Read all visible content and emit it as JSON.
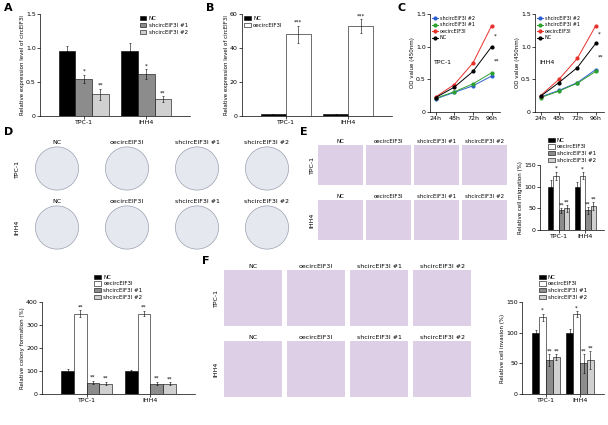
{
  "chart_data": [
    {
      "panel": "A",
      "type": "bar",
      "y_label": "Relative expression level of circEIF3I",
      "categories": [
        "TPC-1",
        "IHH4"
      ],
      "ylim": [
        0,
        1.5
      ],
      "yticks": [
        0,
        0.5,
        {
          "value": 1.0,
          "label": "1.0"
        },
        1.5
      ],
      "legend": "upper right",
      "series": [
        {
          "name": "NC",
          "color": "#000000",
          "values": [
            0.95,
            0.95
          ],
          "errors": [
            0.08,
            0.12
          ],
          "significance": [
            null,
            null
          ]
        },
        {
          "name": "shcircEIF3I #1",
          "color": "#8c8c8c",
          "values": [
            0.55,
            0.62
          ],
          "errors": [
            0.06,
            0.07
          ],
          "significance": [
            "*",
            "*"
          ]
        },
        {
          "name": "shcircEIF3I #2",
          "color": "#d0d0d0",
          "values": [
            0.32,
            0.25
          ],
          "errors": [
            0.08,
            0.04
          ],
          "significance": [
            "**",
            "**"
          ]
        }
      ]
    },
    {
      "panel": "B",
      "type": "bar",
      "y_label": "Relative expression level of circEIF3I",
      "categories": [
        "TPC-1",
        "IHH4"
      ],
      "ylim": [
        0,
        60
      ],
      "yticks": [
        0,
        20,
        40,
        60
      ],
      "legend": "upper left",
      "series": [
        {
          "name": "NC",
          "color": "#000000",
          "values": [
            1.0,
            0.9
          ],
          "errors": [
            0.15,
            0.1
          ],
          "significance": [
            null,
            null
          ]
        },
        {
          "name": "oecircEIF3I",
          "color": "#ffffff",
          "values": [
            48,
            53
          ],
          "errors": [
            5,
            4
          ],
          "significance": [
            "***",
            "***"
          ]
        }
      ]
    },
    {
      "panel": "C",
      "type": "line",
      "title": "TPC-1",
      "y_label": "OD value (450nm)",
      "categories": [
        "24h",
        "48h",
        "72h",
        "96h"
      ],
      "ylim": [
        0,
        1.5
      ],
      "yticks": [
        0,
        0.5,
        {
          "value": 1.0,
          "label": "1.0"
        },
        1.5
      ],
      "legend": "upper left",
      "series": [
        {
          "name": "shcircEIF3I #2",
          "color": "#2e5fd0",
          "marker": "o",
          "values": [
            0.2,
            0.3,
            0.4,
            0.55
          ]
        },
        {
          "name": "shcircEIF3I #1",
          "color": "#2ca02c",
          "marker": "o",
          "values": [
            0.21,
            0.31,
            0.43,
            0.6
          ]
        },
        {
          "name": "oecircEIF3I",
          "color": "#e8302a",
          "marker": "o",
          "values": [
            0.23,
            0.42,
            0.75,
            1.32
          ]
        },
        {
          "name": "NC",
          "color": "#000000",
          "marker": "o",
          "values": [
            0.22,
            0.38,
            0.62,
            1.0
          ]
        }
      ],
      "annotations": [
        {
          "text": "*",
          "y": 1.17
        },
        {
          "text": "**",
          "y": 0.78
        }
      ]
    },
    {
      "type": "line",
      "title": "IHH4",
      "y_label": "OD value (450nm)",
      "categories": [
        "24h",
        "48h",
        "72h",
        "96h"
      ],
      "ylim": [
        0,
        1.5
      ],
      "yticks": [
        0,
        0.5,
        {
          "value": 1.0,
          "label": "1.0"
        },
        1.5
      ],
      "legend": "upper left",
      "series": [
        {
          "name": "shcircEIF3I #2",
          "color": "#2e5fd0",
          "marker": "o",
          "values": [
            0.23,
            0.33,
            0.45,
            0.65
          ]
        },
        {
          "name": "shcircEIF3I #1",
          "color": "#2ca02c",
          "marker": "o",
          "values": [
            0.22,
            0.32,
            0.44,
            0.62
          ]
        },
        {
          "name": "oecircEIF3I",
          "color": "#e8302a",
          "marker": "o",
          "values": [
            0.25,
            0.5,
            0.82,
            1.32
          ]
        },
        {
          "name": "NC",
          "color": "#000000",
          "marker": "o",
          "values": [
            0.24,
            0.45,
            0.68,
            1.05
          ]
        }
      ],
      "annotations": [
        {
          "text": "*",
          "y": 1.19
        },
        {
          "text": "**",
          "y": 0.84
        }
      ]
    },
    {
      "type": "bar",
      "y_label": "Relative colony formation (%)",
      "categories": [
        "TPC-1",
        "IHH4"
      ],
      "ylim": [
        0,
        400
      ],
      "yticks": [
        0,
        100,
        200,
        300,
        400
      ],
      "legend": "above",
      "series": [
        {
          "name": "NC",
          "color": "#000000",
          "values": [
            100,
            100
          ],
          "errors": [
            8,
            6
          ],
          "significance": [
            null,
            null
          ]
        },
        {
          "name": "oecircEIF3I",
          "color": "#ffffff",
          "values": [
            350,
            350
          ],
          "errors": [
            15,
            12
          ],
          "significance": [
            "**",
            "**"
          ]
        },
        {
          "name": "shcircEIF3I #1",
          "color": "#8c8c8c",
          "values": [
            50,
            45
          ],
          "errors": [
            8,
            8
          ],
          "significance": [
            "**",
            "**"
          ]
        },
        {
          "name": "shcircEIF3I #2",
          "color": "#d0d0d0",
          "values": [
            45,
            45
          ],
          "errors": [
            8,
            6
          ],
          "significance": [
            "**",
            "**"
          ]
        }
      ]
    },
    {
      "type": "bar",
      "y_label": "Relative cell migration (%)",
      "categories": [
        "TPC-1",
        "IHH4"
      ],
      "ylim": [
        0,
        150
      ],
      "yticks": [
        0,
        50,
        100,
        150
      ],
      "legend": "above",
      "series": [
        {
          "name": "NC",
          "color": "#000000",
          "values": [
            100,
            100
          ],
          "errors": [
            15,
            10
          ],
          "significance": [
            null,
            null
          ]
        },
        {
          "name": "oecircEIF3I",
          "color": "#ffffff",
          "values": [
            125,
            125
          ],
          "errors": [
            10,
            8
          ],
          "significance": [
            "*",
            "*"
          ]
        },
        {
          "name": "shcircEIF3I #1",
          "color": "#8c8c8c",
          "values": [
            45,
            45
          ],
          "errors": [
            6,
            8
          ],
          "significance": [
            "**",
            "**"
          ]
        },
        {
          "name": "shcircEIF3I #2",
          "color": "#d0d0d0",
          "values": [
            50,
            55
          ],
          "errors": [
            8,
            10
          ],
          "significance": [
            "**",
            "**"
          ]
        }
      ]
    },
    {
      "type": "bar",
      "y_label": "Relative cell invasion (%)",
      "categories": [
        "TPC-1",
        "IHH4"
      ],
      "ylim": [
        0,
        150
      ],
      "yticks": [
        0,
        50,
        100,
        150
      ],
      "legend": "above",
      "series": [
        {
          "name": "NC",
          "color": "#000000",
          "values": [
            100,
            100
          ],
          "errors": [
            4,
            6
          ],
          "significance": [
            null,
            null
          ]
        },
        {
          "name": "oecircEIF3I",
          "color": "#ffffff",
          "values": [
            125,
            130
          ],
          "errors": [
            6,
            5
          ],
          "significance": [
            "*",
            "*"
          ]
        },
        {
          "name": "shcircEIF3I #1",
          "color": "#8c8c8c",
          "values": [
            55,
            50
          ],
          "errors": [
            10,
            15
          ],
          "significance": [
            "**",
            "**"
          ]
        },
        {
          "name": "shcircEIF3I #2",
          "color": "#d0d0d0",
          "values": [
            60,
            55
          ],
          "errors": [
            5,
            15
          ],
          "significance": [
            "**",
            "**"
          ]
        }
      ]
    }
  ],
  "image_panels": [
    {
      "panel": "D",
      "type": "colony_plates",
      "columns": [
        "NC",
        "oecircEIF3I",
        "shcircEIF3I #1",
        "shcircEIF3I #2"
      ],
      "rows": [
        "TPC-1",
        "IHH4"
      ]
    },
    {
      "panel": "E",
      "type": "stained_membrane",
      "columns": [
        "NC",
        "oecircEIF3I",
        "shcircEIF3I #1",
        "shcircEIF3I #2"
      ],
      "rows": [
        "TPC-1",
        "IHH4"
      ]
    },
    {
      "panel": "F",
      "type": "stained_membrane",
      "columns": [
        "NC",
        "oecircEIF3I",
        "shcircEIF3I #1",
        "shcircEIF3I #2"
      ],
      "rows": [
        "TPC-1",
        "IHH4"
      ]
    }
  ]
}
